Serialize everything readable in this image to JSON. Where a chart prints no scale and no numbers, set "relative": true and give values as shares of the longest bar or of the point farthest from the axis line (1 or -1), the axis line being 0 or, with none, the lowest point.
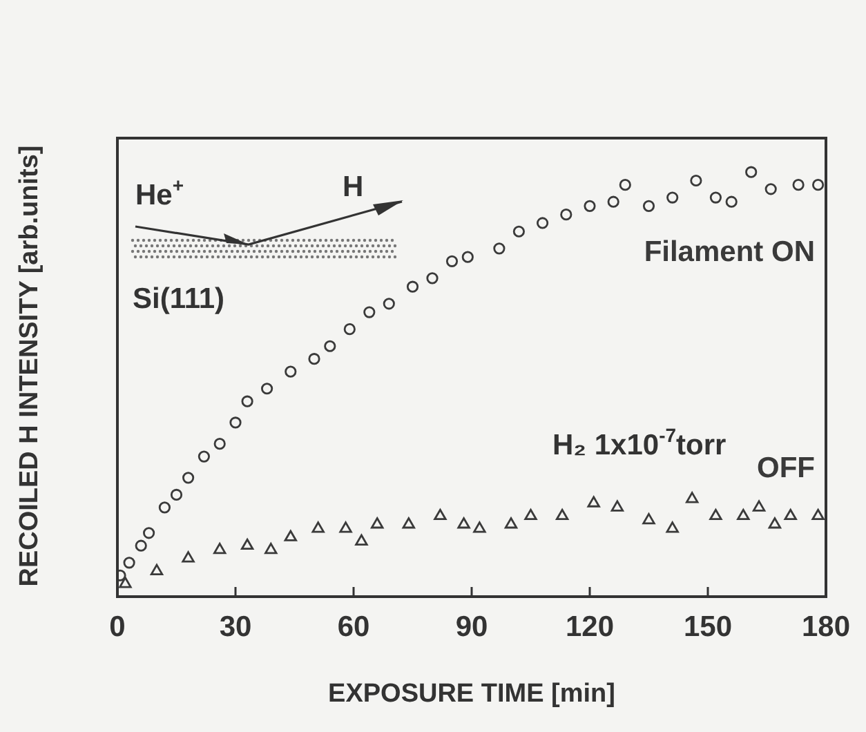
{
  "chart_data": {
    "type": "scatter",
    "xlabel": "EXPOSURE TIME [min]",
    "ylabel": "RECOILED H INTENSITY  [arb.units]",
    "relative": true,
    "xlim": [
      0,
      180
    ],
    "xticks": [
      0,
      30,
      60,
      90,
      120,
      150,
      180
    ],
    "grid": false,
    "legend": false,
    "annotations": [
      "He$^{+}$",
      "H",
      "Si(111)",
      "H₂ 1x10$^{-7}$torr"
    ],
    "series": [
      {
        "name": "Filament ON",
        "color": "#3a3a3a",
        "marker": "circle",
        "x": [
          0.7,
          3,
          6,
          8,
          12,
          15,
          18,
          22,
          26,
          30,
          33,
          38,
          44,
          50,
          54,
          59,
          64,
          69,
          75,
          80,
          85,
          89,
          97,
          102,
          108,
          114,
          120,
          126,
          129,
          135,
          141,
          147,
          152,
          156,
          161,
          166,
          173,
          178
        ],
        "values": [
          0.05,
          0.08,
          0.12,
          0.15,
          0.21,
          0.24,
          0.28,
          0.33,
          0.36,
          0.41,
          0.46,
          0.49,
          0.53,
          0.56,
          0.59,
          0.63,
          0.67,
          0.69,
          0.73,
          0.75,
          0.79,
          0.8,
          0.82,
          0.86,
          0.88,
          0.9,
          0.92,
          0.93,
          0.97,
          0.92,
          0.94,
          0.98,
          0.94,
          0.93,
          1,
          0.96,
          0.97,
          0.97
        ]
      },
      {
        "name": "OFF",
        "color": "#3a3a3a",
        "marker": "triangle",
        "x": [
          2,
          10,
          18,
          26,
          33,
          39,
          44,
          51,
          58,
          62,
          66,
          74,
          82,
          88,
          92,
          100,
          105,
          113,
          121,
          127,
          135,
          141,
          146,
          152,
          159,
          163,
          167,
          171,
          178
        ],
        "values": [
          0.03,
          0.06,
          0.09,
          0.11,
          0.12,
          0.11,
          0.14,
          0.16,
          0.16,
          0.13,
          0.17,
          0.17,
          0.19,
          0.17,
          0.16,
          0.17,
          0.19,
          0.19,
          0.22,
          0.21,
          0.18,
          0.16,
          0.23,
          0.19,
          0.19,
          0.21,
          0.17,
          0.19,
          0.19
        ]
      }
    ]
  }
}
